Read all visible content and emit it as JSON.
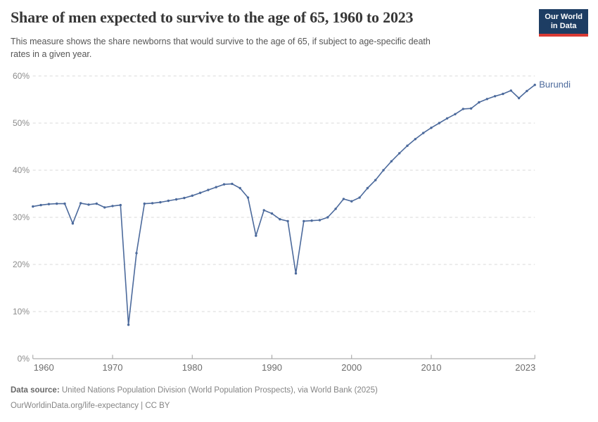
{
  "header": {
    "title": "Share of men expected to survive to the age of 65, 1960 to 2023",
    "subtitle_line1": "This measure shows the share newborns that would survive to the age of 65, if subject to age-specific death",
    "subtitle_line2": "rates in a given year.",
    "logo": {
      "line1": "Our World",
      "line2": "in Data",
      "bg_color": "#1d3d63",
      "accent_color": "#d93a34"
    }
  },
  "chart_data": {
    "type": "line",
    "title": "Share of men expected to survive to the age of 65, 1960 to 2023",
    "xlabel": "",
    "ylabel": "",
    "xlim": [
      1960,
      2023
    ],
    "ylim": [
      0,
      60
    ],
    "x_ticks": [
      1960,
      1970,
      1980,
      1990,
      2000,
      2010,
      2023
    ],
    "y_ticks": [
      "0%",
      "10%",
      "20%",
      "30%",
      "40%",
      "50%",
      "60%"
    ],
    "grid": "horizontal-dashed",
    "legend_position": "end-of-line-label",
    "series": [
      {
        "name": "Burundi",
        "color": "#4c6a9c",
        "x": [
          1960,
          1961,
          1962,
          1963,
          1964,
          1965,
          1966,
          1967,
          1968,
          1969,
          1970,
          1971,
          1972,
          1973,
          1974,
          1975,
          1976,
          1977,
          1978,
          1979,
          1980,
          1981,
          1982,
          1983,
          1984,
          1985,
          1986,
          1987,
          1988,
          1989,
          1990,
          1991,
          1992,
          1993,
          1994,
          1995,
          1996,
          1997,
          1998,
          1999,
          2000,
          2001,
          2002,
          2003,
          2004,
          2005,
          2006,
          2007,
          2008,
          2009,
          2010,
          2011,
          2012,
          2013,
          2014,
          2015,
          2016,
          2017,
          2018,
          2019,
          2020,
          2021,
          2022,
          2023
        ],
        "values": [
          32.3,
          32.6,
          32.8,
          32.9,
          32.9,
          28.7,
          33.0,
          32.7,
          32.9,
          32.1,
          32.4,
          32.6,
          7.2,
          22.4,
          32.9,
          33.0,
          33.2,
          33.5,
          33.8,
          34.1,
          34.6,
          35.2,
          35.8,
          36.4,
          37.0,
          37.1,
          36.2,
          34.2,
          26.1,
          31.5,
          30.8,
          29.6,
          29.2,
          18.1,
          29.2,
          29.3,
          29.4,
          30.0,
          31.8,
          33.9,
          33.4,
          34.2,
          36.2,
          37.9,
          40.0,
          41.9,
          43.6,
          45.2,
          46.6,
          47.9,
          49.0,
          50.0,
          51.0,
          51.9,
          53.0,
          53.1,
          54.4,
          55.1,
          55.7,
          56.2,
          56.9,
          55.3,
          56.8,
          58.1
        ]
      }
    ],
    "colors": {
      "grid": "#d9d9d9",
      "axis": "#9e9e9e",
      "x_tick_label": "#6d6d6d",
      "y_tick_label": "#8c8c8c"
    }
  },
  "footer": {
    "source_label": "Data source:",
    "source_text": "United Nations Population Division (World Population Prospects), via World Bank (2025)",
    "link_line": "OurWorldinData.org/life-expectancy | CC BY"
  }
}
